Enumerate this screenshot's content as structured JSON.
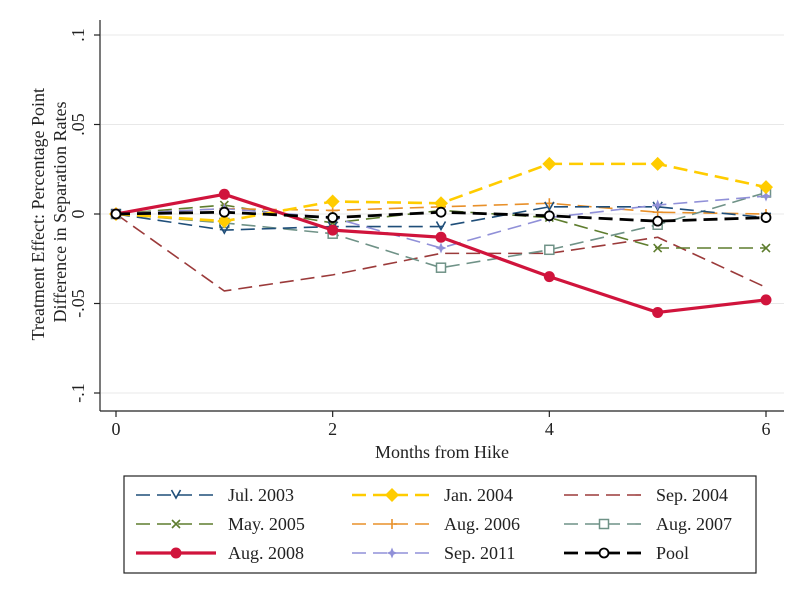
{
  "chart_data": {
    "type": "line",
    "xlabel": "Months from Hike",
    "ylabel_lines": [
      "Treatment Effect: Percentage Point",
      "Difference in Separation Rates"
    ],
    "xlim": [
      0,
      6
    ],
    "ylim": [
      -0.1,
      0.1
    ],
    "x_ticks": [
      0,
      2,
      4,
      6
    ],
    "x_tick_labels": [
      "0",
      "2",
      "4",
      "6"
    ],
    "y_ticks": [
      0.1,
      0.05,
      0,
      -0.05,
      -0.1
    ],
    "y_tick_labels": [
      ".1",
      ".05",
      "0",
      "-.05",
      "-.1"
    ],
    "grid": true,
    "legend_position": "bottom",
    "x": [
      0,
      1,
      2,
      3,
      4,
      5,
      6
    ],
    "series": [
      {
        "name": "Jul. 2003",
        "color": "#1f4e79",
        "marker": "tri-down",
        "dash": "14,7",
        "width": 1.6,
        "values": [
          0,
          -0.009,
          -0.007,
          -0.007,
          0.004,
          0.004,
          -0.002
        ]
      },
      {
        "name": "Jan. 2004",
        "color": "#ffcc00",
        "marker": "diamond",
        "dash": "14,7",
        "width": 2.6,
        "values": [
          0,
          -0.004,
          0.007,
          0.006,
          0.028,
          0.028,
          0.015
        ]
      },
      {
        "name": "Sep. 2004",
        "color": "#9b3a3a",
        "marker": "none",
        "dash": "14,7",
        "width": 1.6,
        "values": [
          0,
          -0.043,
          -0.034,
          -0.022,
          -0.022,
          -0.013,
          -0.041
        ]
      },
      {
        "name": "May. 2005",
        "color": "#5e7d2e",
        "marker": "x",
        "dash": "14,7",
        "width": 1.6,
        "values": [
          0,
          0.005,
          -0.005,
          0.002,
          -0.002,
          -0.019,
          -0.019
        ]
      },
      {
        "name": "Aug. 2006",
        "color": "#e8902a",
        "marker": "plus",
        "dash": "14,7",
        "width": 1.6,
        "values": [
          0,
          0.003,
          0.002,
          0.004,
          0.006,
          0.001,
          0.0
        ]
      },
      {
        "name": "Aug. 2007",
        "color": "#6f9287",
        "marker": "square",
        "dash": "14,7",
        "width": 1.6,
        "values": [
          0,
          -0.005,
          -0.011,
          -0.03,
          -0.02,
          -0.006,
          0.012
        ]
      },
      {
        "name": "Aug. 2008",
        "color": "#d0143c",
        "marker": "circle",
        "dash": "",
        "width": 3.2,
        "values": [
          0,
          0.011,
          -0.009,
          -0.013,
          -0.035,
          -0.055,
          -0.048
        ]
      },
      {
        "name": "Sep. 2011",
        "color": "#9090d8",
        "marker": "star",
        "dash": "14,7",
        "width": 1.6,
        "values": [
          0,
          0.003,
          -0.002,
          -0.019,
          -0.002,
          0.005,
          0.01
        ]
      },
      {
        "name": "Pool",
        "color": "#000000",
        "marker": "open-circle",
        "dash": "14,7",
        "width": 2.8,
        "values": [
          0,
          0.001,
          -0.002,
          0.001,
          -0.001,
          -0.004,
          -0.002
        ]
      }
    ]
  }
}
